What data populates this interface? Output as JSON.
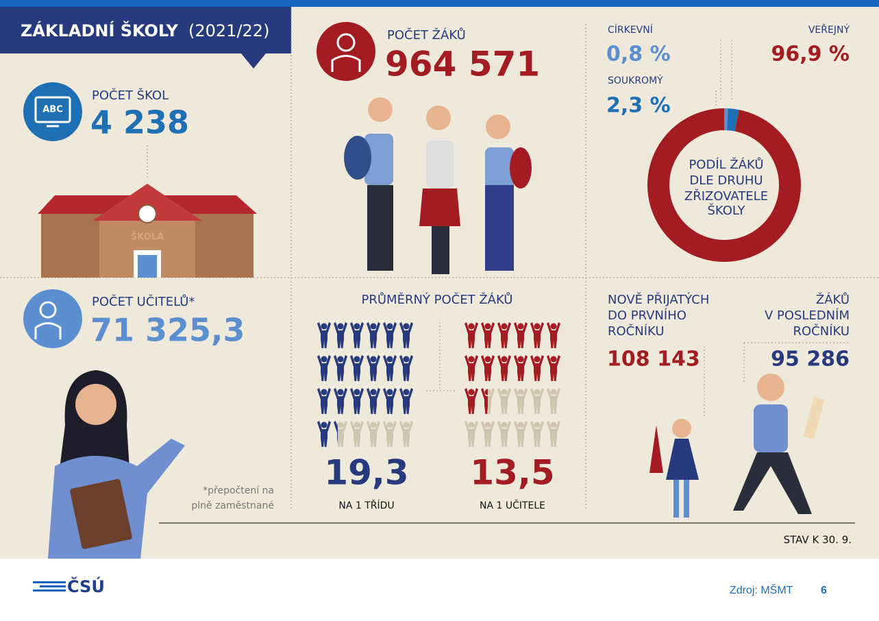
{
  "header": {
    "title": "ZÁKLADNÍ ŠKOLY",
    "period": "(2021/22)"
  },
  "schools": {
    "label": "POČET ŠKOL",
    "value": "4 238",
    "icon_text": "ABC",
    "building_sign": "ŠKOLA"
  },
  "pupils": {
    "label": "POČET ŽÁKŮ",
    "value": "964 571"
  },
  "teachers": {
    "label": "POČET UČITELŮ*",
    "value": "71 325,3",
    "note": [
      "*přepočtení na",
      "plně zaměstnané"
    ]
  },
  "average": {
    "title": "PRŮMĚRNÝ POČET ŽÁKŮ",
    "per_class": {
      "value": 19.3,
      "value_label": "19,3",
      "label": "NA 1 TŘÍDU",
      "color": "#263a7d"
    },
    "per_teacher": {
      "value": 13.5,
      "value_label": "13,5",
      "label": "NA 1 UČITELE",
      "color": "#a31c22"
    }
  },
  "chart_data": {
    "type": "pie",
    "title": [
      "PODÍL ŽÁKŮ",
      "DLE DRUHU",
      "ZŘIZOVATELE",
      "ŠKOLY"
    ],
    "categories": [
      "CÍRKEVNÍ",
      "SOUKROMÝ",
      "VEŘEJNÝ"
    ],
    "values": [
      0.8,
      2.3,
      96.9
    ],
    "value_labels": [
      "0,8 %",
      "2,3 %",
      "96,9 %"
    ],
    "colors": [
      "#5b8fd0",
      "#1f6fb5",
      "#a31c22"
    ]
  },
  "first_grade": {
    "label": [
      "NOVĚ PŘIJATÝCH",
      "DO PRVNÍHO",
      "ROČNÍKU"
    ],
    "value": "108 143"
  },
  "last_grade": {
    "label": [
      "ŽÁKŮ",
      "V POSLEDNÍM",
      "ROČNÍKU"
    ],
    "value": "95 286"
  },
  "status": "STAV K 30. 9.",
  "footer": {
    "logo": "ČSÚ",
    "source": "Zdroj: MŠMT",
    "page": "6"
  }
}
